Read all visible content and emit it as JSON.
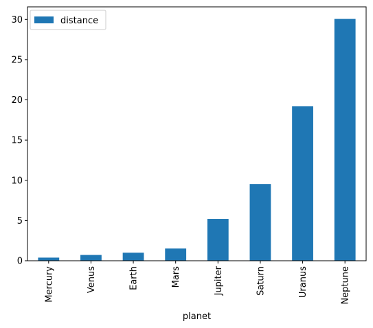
{
  "chart_data": {
    "type": "bar",
    "categories": [
      "Mercury",
      "Venus",
      "Earth",
      "Mars",
      "Jupiter",
      "Saturn",
      "Uranus",
      "Neptune"
    ],
    "series": [
      {
        "name": "distance",
        "values": [
          0.39,
          0.72,
          1.0,
          1.52,
          5.2,
          9.54,
          19.2,
          30.06
        ]
      }
    ],
    "xlabel": "planet",
    "ylabel": "",
    "ylim": [
      0,
      31.56
    ],
    "yticks": [
      0,
      5,
      10,
      15,
      20,
      25,
      30
    ],
    "grid": false,
    "legend_position": "top-left",
    "colors": {
      "bar": "#1f77b4"
    }
  }
}
